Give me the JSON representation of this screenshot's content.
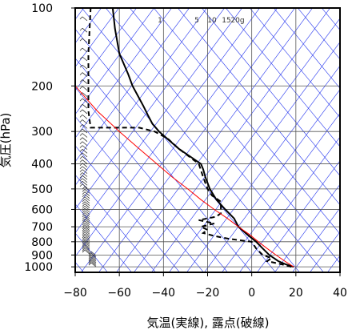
{
  "chart_data": {
    "type": "line",
    "subtype": "skew-t log-p sounding diagram",
    "xlabel": "気温(実線), 露点(破線)",
    "ylabel": "気圧(hPa)",
    "x_ticks": [
      -80,
      -60,
      -40,
      -20,
      0,
      20,
      40
    ],
    "y_ticks": [
      100,
      200,
      300,
      400,
      500,
      600,
      700,
      800,
      900,
      1000
    ],
    "xlim": [
      -80,
      40
    ],
    "ylim": [
      1050,
      100
    ],
    "y_scale": "log",
    "grid": true,
    "mixing_ratio_labels": [
      "1",
      "5",
      "10",
      "15",
      "20g"
    ],
    "series": [
      {
        "name": "気温",
        "style": "solid",
        "color": "#000000",
        "points": [
          {
            "p": 1000,
            "t": 19
          },
          {
            "p": 975,
            "t": 15
          },
          {
            "p": 950,
            "t": 12
          },
          {
            "p": 925,
            "t": 10
          },
          {
            "p": 900,
            "t": 8
          },
          {
            "p": 850,
            "t": 5
          },
          {
            "p": 800,
            "t": 2
          },
          {
            "p": 750,
            "t": -2
          },
          {
            "p": 700,
            "t": -6
          },
          {
            "p": 650,
            "t": -8
          },
          {
            "p": 600,
            "t": -12
          },
          {
            "p": 550,
            "t": -16
          },
          {
            "p": 500,
            "t": -19
          },
          {
            "p": 450,
            "t": -21
          },
          {
            "p": 420,
            "t": -22
          },
          {
            "p": 400,
            "t": -23
          },
          {
            "p": 350,
            "t": -33
          },
          {
            "p": 300,
            "t": -42
          },
          {
            "p": 280,
            "t": -45
          },
          {
            "p": 260,
            "t": -47
          },
          {
            "p": 240,
            "t": -49
          },
          {
            "p": 200,
            "t": -54
          },
          {
            "p": 180,
            "t": -56
          },
          {
            "p": 150,
            "t": -60
          },
          {
            "p": 120,
            "t": -62
          },
          {
            "p": 100,
            "t": -63
          }
        ]
      },
      {
        "name": "露点",
        "style": "dashed",
        "color": "#000000",
        "points": [
          {
            "p": 1000,
            "t": 18
          },
          {
            "p": 975,
            "t": 13
          },
          {
            "p": 950,
            "t": 7
          },
          {
            "p": 925,
            "t": 9
          },
          {
            "p": 900,
            "t": 5
          },
          {
            "p": 850,
            "t": 2
          },
          {
            "p": 800,
            "t": 0
          },
          {
            "p": 780,
            "t": -10
          },
          {
            "p": 760,
            "t": -17
          },
          {
            "p": 740,
            "t": -22
          },
          {
            "p": 720,
            "t": -20
          },
          {
            "p": 700,
            "t": -23
          },
          {
            "p": 680,
            "t": -17
          },
          {
            "p": 660,
            "t": -24
          },
          {
            "p": 640,
            "t": -16
          },
          {
            "p": 620,
            "t": -14
          },
          {
            "p": 560,
            "t": -14
          },
          {
            "p": 530,
            "t": -18
          },
          {
            "p": 500,
            "t": -20
          },
          {
            "p": 450,
            "t": -22
          },
          {
            "p": 400,
            "t": -24
          },
          {
            "p": 350,
            "t": -33
          },
          {
            "p": 320,
            "t": -38
          },
          {
            "p": 300,
            "t": -44
          },
          {
            "p": 290,
            "t": -51
          },
          {
            "p": 290,
            "t": -73
          },
          {
            "p": 250,
            "t": -74
          },
          {
            "p": 200,
            "t": -74
          },
          {
            "p": 150,
            "t": -74
          },
          {
            "p": 100,
            "t": -73
          }
        ]
      },
      {
        "name": "",
        "style": "solid",
        "color": "#ff0000",
        "points": [
          {
            "p": 1000,
            "t": 19
          },
          {
            "p": 950,
            "t": 15
          },
          {
            "p": 900,
            "t": 11
          },
          {
            "p": 850,
            "t": 7
          },
          {
            "p": 800,
            "t": 3
          },
          {
            "p": 750,
            "t": -1
          },
          {
            "p": 700,
            "t": -6
          },
          {
            "p": 650,
            "t": -11
          },
          {
            "p": 600,
            "t": -17
          },
          {
            "p": 550,
            "t": -23
          },
          {
            "p": 500,
            "t": -29
          },
          {
            "p": 450,
            "t": -36
          },
          {
            "p": 400,
            "t": -43
          },
          {
            "p": 350,
            "t": -51
          },
          {
            "p": 300,
            "t": -60
          },
          {
            "p": 250,
            "t": -70
          },
          {
            "p": 200,
            "t": -80
          }
        ]
      }
    ]
  }
}
